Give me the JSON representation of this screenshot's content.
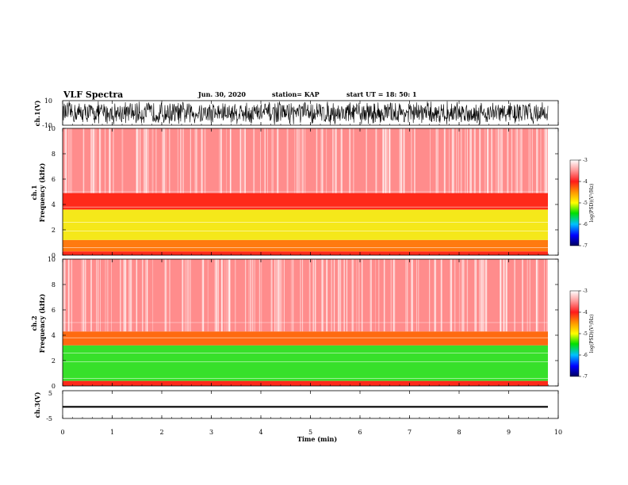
{
  "header": {
    "title": "VLF Spectra",
    "date": "Jun. 30, 2020",
    "station": "station= KAP",
    "start": "start  UT =   18: 50: 1"
  },
  "chart_data": [
    {
      "type": "line",
      "panel": "ch1-waveform",
      "ylabel": "ch.1(V)",
      "ylim": [
        -10,
        10
      ],
      "yticks": [
        "10",
        "-10"
      ],
      "xlim": [
        0,
        10
      ]
    },
    {
      "type": "heatmap",
      "panel": "ch1-spectrogram",
      "ylabel": "ch.1\nFrequency (kHz)",
      "ylim": [
        0,
        10
      ],
      "yticks": [
        "0",
        "2",
        "4",
        "6",
        "8",
        "10"
      ],
      "colorbar": {
        "label": "log(PSD)(V²/Hz)",
        "ticks": [
          "-3",
          "-4",
          "-5",
          "-6",
          "-7"
        ],
        "range": [
          -7,
          -3
        ]
      },
      "bands": [
        {
          "from": 0.0,
          "to": 0.3,
          "color": "#ff2a1a"
        },
        {
          "from": 0.3,
          "to": 1.2,
          "color": "#ff7a10"
        },
        {
          "from": 1.2,
          "to": 3.6,
          "color": "#f5e81a"
        },
        {
          "from": 3.6,
          "to": 4.9,
          "color": "#ff2a1a"
        },
        {
          "from": 4.9,
          "to": 10.0,
          "color": "#ff8c8c"
        }
      ]
    },
    {
      "type": "heatmap",
      "panel": "ch2-spectrogram",
      "ylabel": "ch.2\nFrequency (kHz)",
      "ylim": [
        0,
        10
      ],
      "yticks": [
        "0",
        "2",
        "4",
        "6",
        "8",
        "10"
      ],
      "colorbar": {
        "label": "log(PSD)(V²/Hz)",
        "ticks": [
          "-3",
          "-4",
          "-5",
          "-6",
          "-7"
        ],
        "range": [
          -7,
          -3
        ]
      },
      "bands": [
        {
          "from": 0.0,
          "to": 0.4,
          "color": "#ff2a1a"
        },
        {
          "from": 0.4,
          "to": 3.2,
          "color": "#37e02a"
        },
        {
          "from": 3.2,
          "to": 4.3,
          "color": "#ff6a10"
        },
        {
          "from": 4.3,
          "to": 10.0,
          "color": "#ff8c8c"
        }
      ]
    },
    {
      "type": "line",
      "panel": "ch3-waveform",
      "ylabel": "ch.3(V)",
      "ylim": [
        -5,
        5
      ],
      "yticks": [
        "5",
        "0",
        "-5"
      ],
      "value_band": [
        -1.1,
        -0.5
      ],
      "xlim": [
        0,
        10
      ],
      "xlabel": "Time (min)",
      "xticks": [
        "0",
        "1",
        "2",
        "3",
        "4",
        "5",
        "6",
        "7",
        "8",
        "9",
        "10"
      ]
    }
  ],
  "colors": {
    "waveform": "#000000",
    "axes": "#000000"
  }
}
